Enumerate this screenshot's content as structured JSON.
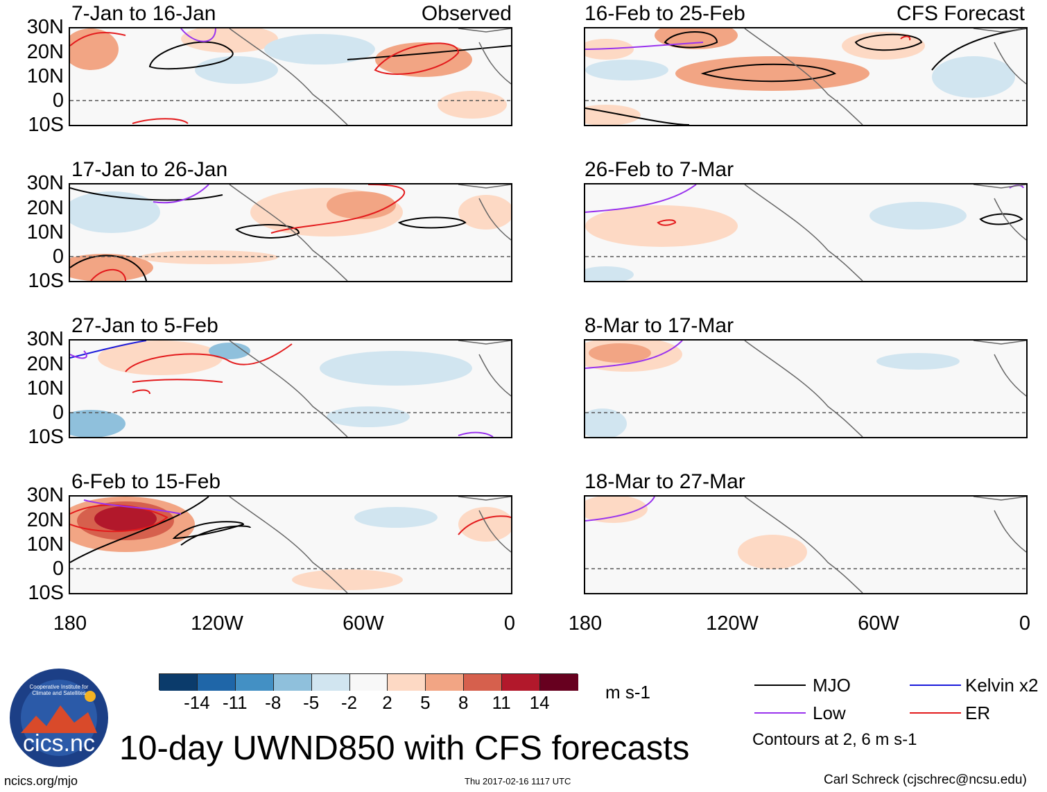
{
  "lat_labels": [
    "30N",
    "20N",
    "10N",
    "0",
    "10S"
  ],
  "lon_labels": [
    "180",
    "120W",
    "60W",
    "0"
  ],
  "left_column_tag": "Observed",
  "right_column_tag": "CFS Forecast",
  "panels_left": [
    {
      "title": "7-Jan to 16-Jan"
    },
    {
      "title": "17-Jan to 26-Jan"
    },
    {
      "title": "27-Jan to 5-Feb"
    },
    {
      "title": "6-Feb to 15-Feb"
    }
  ],
  "panels_right": [
    {
      "title": "16-Feb to 25-Feb"
    },
    {
      "title": "26-Feb to 7-Mar"
    },
    {
      "title": "8-Mar to 17-Mar"
    },
    {
      "title": "18-Mar to 27-Mar"
    }
  ],
  "colorbar": {
    "labels": [
      "-14",
      "-11",
      "-8",
      "-5",
      "-2",
      "2",
      "5",
      "8",
      "11",
      "14"
    ],
    "colors": [
      "#0b3b6b",
      "#1f66a8",
      "#4390c4",
      "#8fc0dc",
      "#d1e5f0",
      "#f8f8f8",
      "#fdd9c4",
      "#f2a584",
      "#d6604d",
      "#b2182b",
      "#67001f"
    ],
    "units": "m s-1"
  },
  "legend": {
    "items": [
      {
        "label": "MJO",
        "color": "#000000"
      },
      {
        "label": "Kelvin x2",
        "color": "#1a1adb"
      },
      {
        "label": "Low",
        "color": "#9933ee"
      },
      {
        "label": "ER",
        "color": "#e31a1c"
      }
    ],
    "contours_note": "Contours at 2, 6 m s-1"
  },
  "footer": {
    "logo_text": "cics.nc",
    "logo_ring_text": "Cooperative Institute for Climate and Satellites",
    "main_title": "10-day UWND850 with CFS forecasts",
    "url": "ncics.org/mjo",
    "timestamp": "Thu 2017-02-16 1117 UTC",
    "credit": "Carl Schreck (cjschrec@ncsu.edu)"
  }
}
